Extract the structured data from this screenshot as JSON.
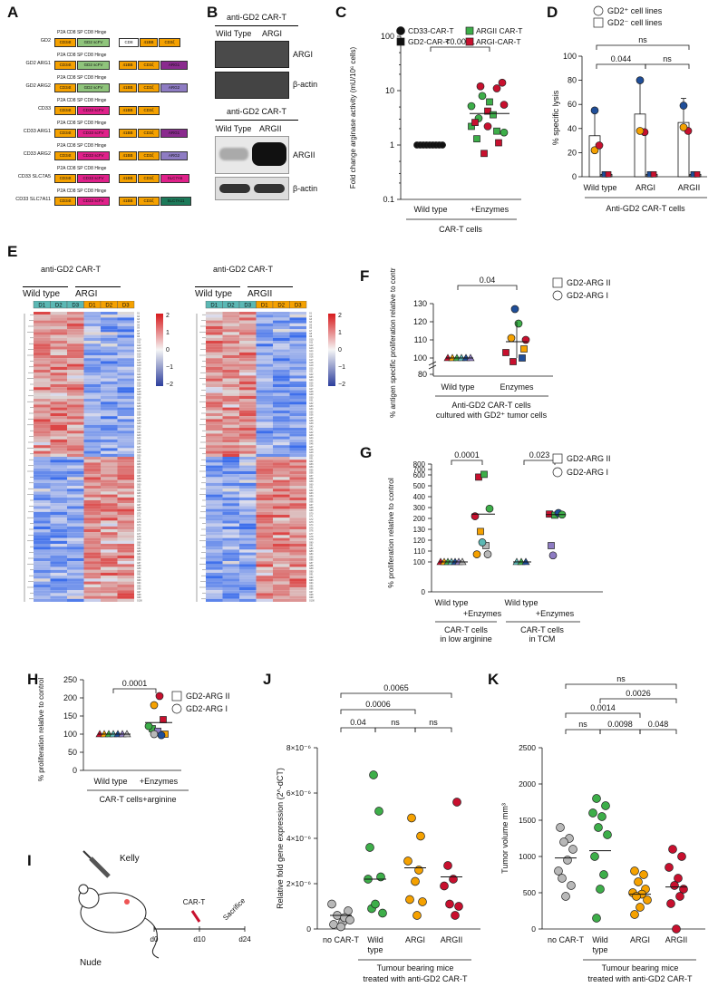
{
  "panels": {
    "A": {
      "letter": "A",
      "constructs": [
        {
          "label": "GD2",
          "parts": [
            "CD34t",
            "GD2 scFV",
            "CD8 hinge",
            "41BB",
            "CD3ζ"
          ]
        },
        {
          "label": "GD2 ARG1",
          "parts": [
            "CD34t",
            "GD2 scFV",
            "",
            "41BB",
            "CD3ζ",
            "ARG1"
          ]
        },
        {
          "label": "GD2 ARG2",
          "parts": [
            "CD34t",
            "GD2 scFV",
            "",
            "41BB",
            "CD3ζ",
            "ARG2"
          ]
        },
        {
          "label": "CD33",
          "parts": [
            "CD34t",
            "CD33 scFV",
            "",
            "41BB",
            "CD3ζ"
          ]
        },
        {
          "label": "CD33 ARG1",
          "parts": [
            "CD34t",
            "CD33 scFV",
            "",
            "41BB",
            "CD3ζ",
            "ARG1"
          ]
        },
        {
          "label": "CD33 ARG2",
          "parts": [
            "CD34t",
            "CD33 scFV",
            "",
            "41BB",
            "CD3ζ",
            "ARG2"
          ]
        },
        {
          "label": "CD33 SLC7A5",
          "parts": [
            "CD34t",
            "CD33 scFV",
            "",
            "41BB",
            "CD3ζ",
            "SLC7A5"
          ]
        },
        {
          "label": "CD33 SLC7A11",
          "parts": [
            "CD34t",
            "CD33 scFV",
            "",
            "41BB",
            "CD3ζ",
            "SLC7A11"
          ]
        }
      ],
      "annot": {
        "p2a": "P2A",
        "cd8sp": "CD8 SP",
        "cd8hinge": "CD8 Hinge"
      }
    },
    "B": {
      "letter": "B",
      "title1": "anti-GD2 CAR-T",
      "wt1": "Wild Type",
      "arg1": "ARGI",
      "band1": "ARGI",
      "actin1": "β-actin",
      "title2": "anti-GD2 CAR-T",
      "wt2": "Wild Type",
      "arg2": "ARGII",
      "band2": "ARGII",
      "actin2": "β-actin"
    },
    "C": {
      "letter": "C"
    },
    "D": {
      "letter": "D"
    },
    "E": {
      "letter": "E",
      "left": {
        "title": "anti-GD2 CAR-T",
        "g1": "Wild type",
        "g2": "ARGI",
        "cols": [
          "D1",
          "D2",
          "D3",
          "D1",
          "D2",
          "D3"
        ],
        "scale": [
          "2",
          "1",
          "0",
          "−1",
          "−2"
        ]
      },
      "right": {
        "title": "anti-GD2 CAR-T",
        "g1": "Wild type",
        "g2": "ARGII",
        "cols": [
          "D1",
          "D2",
          "D3",
          "D1",
          "D2",
          "D3"
        ],
        "scale": [
          "2",
          "1",
          "0",
          "−1",
          "−2"
        ]
      }
    },
    "F": {
      "letter": "F"
    },
    "G": {
      "letter": "G"
    },
    "H": {
      "letter": "H"
    },
    "I": {
      "letter": "I",
      "kelly": "Kelly",
      "nude": "Nude",
      "cart": "CAR-T",
      "sacrifice": "Sacrifice",
      "d0": "d0",
      "d10": "d10",
      "d24": "d24"
    },
    "J": {
      "letter": "J"
    },
    "K": {
      "letter": "K"
    }
  },
  "chart_data": [
    {
      "id": "C",
      "type": "scatter",
      "ylabel": "Fold change arginase activity (mU/10⁶ cells)",
      "yscale": "log",
      "ylim": [
        0.1,
        100
      ],
      "yticks": [
        "0.1",
        "1",
        "10",
        "100"
      ],
      "categories": [
        "Wild type",
        "+Enzymes"
      ],
      "xgroup": "CAR-T cells",
      "legend": [
        "CD33-CAR-T",
        "GD2-CAR-T",
        "ARGII CAR-T",
        "ARGI-CAR-T"
      ],
      "pvalue": "<0.0001",
      "series": [
        {
          "name": "CD33-CAR-T",
          "values": [
            1,
            1,
            1,
            1,
            1,
            1,
            1,
            1,
            1
          ]
        },
        {
          "name": "ARGII CAR-T",
          "values": [
            2.2,
            3.1,
            4.2,
            1.8,
            5.5,
            2.6,
            8.0,
            3.6
          ]
        },
        {
          "name": "ARGI-CAR-T",
          "values": [
            1.1,
            2.0,
            4.0,
            6.0,
            10.5,
            2.8,
            1.6,
            12.0,
            0.7
          ]
        }
      ]
    },
    {
      "id": "D",
      "type": "bar",
      "ylabel": "% specific lysis",
      "ylim": [
        0,
        100
      ],
      "yticks": [
        "0",
        "20",
        "40",
        "60",
        "80",
        "100"
      ],
      "categories": [
        "Wild type",
        "ARGI",
        "ARGII"
      ],
      "xgroup": "Anti-GD2 CAR-T cells",
      "legend": [
        "GD2⁺ cell lines",
        "GD2⁻ cell lines"
      ],
      "series": [
        {
          "name": "GD2⁺ cell lines",
          "values": [
            34,
            52,
            45
          ]
        },
        {
          "name": "GD2⁻ cell lines",
          "values": [
            2,
            2,
            2
          ]
        }
      ],
      "pvalues": [
        "ns",
        "0.044",
        "ns"
      ]
    },
    {
      "id": "F",
      "type": "scatter",
      "ylabel": "% antigen specific proliferation relative to control",
      "yticks": [
        "80",
        "100",
        "110",
        "120",
        "130"
      ],
      "categories": [
        "Wild type",
        "Enzymes"
      ],
      "xgroup": "Anti-GD2 CAR-T cells cultured with GD2⁺ tumor cells",
      "legend": [
        "GD2-ARG II",
        "GD2-ARG I"
      ],
      "pvalue": "0.04",
      "values_wt": [
        100,
        100,
        100,
        100,
        100
      ],
      "values_enz": [
        127,
        119,
        111,
        109,
        101,
        98,
        100,
        108
      ]
    },
    {
      "id": "G",
      "type": "scatter",
      "ylabel": "% proliferation relative to control",
      "yticks": [
        "0",
        "100",
        "110",
        "120",
        "130",
        "200",
        "300",
        "400",
        "500",
        "600",
        "700",
        "800"
      ],
      "categories": [
        "Wild type",
        "+Enzymes",
        "Wild type",
        "+Enzymes"
      ],
      "xgroups": [
        "CAR-T cells in low arginine",
        "CAR-T cells in TCM"
      ],
      "legend": [
        "GD2-ARG II",
        "GD2-ARG I"
      ],
      "pvalues": [
        "0.0001",
        "0.023"
      ]
    },
    {
      "id": "H",
      "type": "scatter",
      "ylabel": "% proliferation relative to control",
      "ylim": [
        0,
        250
      ],
      "yticks": [
        "0",
        "50",
        "100",
        "150",
        "200",
        "250"
      ],
      "categories": [
        "Wild type",
        "+Enzymes"
      ],
      "xgroup": "CAR-T cells+arginine",
      "legend": [
        "GD2-ARG II",
        "GD2-ARG I"
      ],
      "pvalue": "0.0001"
    },
    {
      "id": "J",
      "type": "scatter",
      "ylabel": "Relative fold gene expression (2^-dCT)",
      "ylim": [
        0,
        8e-06
      ],
      "yticks": [
        "0",
        "2×10⁻⁶",
        "4×10⁻⁶",
        "6×10⁻⁶",
        "8×10⁻⁶"
      ],
      "categories": [
        "no CAR-T",
        "Wild type",
        "ARGI",
        "ARGII"
      ],
      "xgroup": "Tumour bearing mice treated with anti-GD2 CAR-T",
      "pvalues": [
        "0.0065",
        "0.0006",
        "0.04",
        "ns",
        "ns"
      ]
    },
    {
      "id": "K",
      "type": "scatter",
      "ylabel": "Tumor volume mm³",
      "ylim": [
        0,
        2500
      ],
      "yticks": [
        "0",
        "500",
        "1000",
        "1500",
        "2000",
        "2500"
      ],
      "categories": [
        "no CAR-T",
        "Wild type",
        "ARGI",
        "ARGII"
      ],
      "xgroup": "Tumour bearing mice treated with anti-GD2 CAR-T",
      "pvalues": [
        "ns",
        "0.0026",
        "0.0014",
        "ns",
        "0.0098",
        "0.048"
      ]
    }
  ],
  "colors": {
    "green": "#3dae49",
    "red": "#c8102e",
    "orange": "#f5a100",
    "blue": "#1f4e99",
    "grey": "#b8b8b8",
    "teal": "#5bb8b4",
    "purple": "#8e7cc3"
  }
}
